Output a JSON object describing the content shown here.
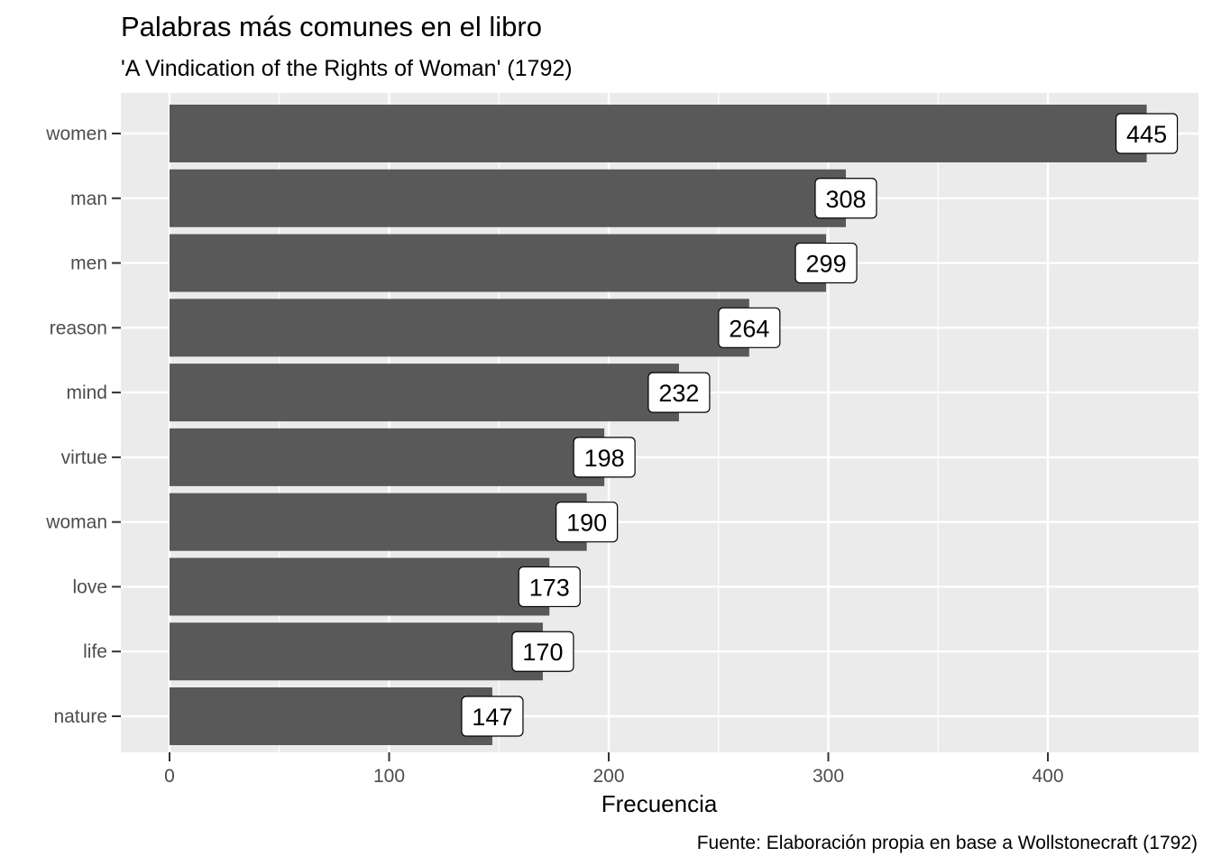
{
  "chart_data": {
    "type": "bar",
    "orientation": "horizontal",
    "title": "Palabras más comunes en el libro",
    "subtitle": "'A Vindication of the Rights of Woman' (1792)",
    "xlabel": "Frecuencia",
    "ylabel": "",
    "caption": "Fuente: Elaboración propia en base a Wollstonecraft (1792)",
    "categories": [
      "women",
      "man",
      "men",
      "reason",
      "mind",
      "virtue",
      "woman",
      "love",
      "life",
      "nature"
    ],
    "values": [
      445,
      308,
      299,
      264,
      232,
      198,
      190,
      173,
      170,
      147
    ],
    "xlim": [
      0,
      445
    ],
    "xticks": [
      "0",
      "100",
      "200",
      "300",
      "400"
    ],
    "grid": true,
    "legend": "none",
    "colors": {
      "bar": "#595959",
      "panel": "#ebebeb",
      "grid": "#ffffff",
      "tick_text": "#4d4d4d",
      "label_fill": "#ffffff",
      "label_border": "#000000"
    }
  }
}
